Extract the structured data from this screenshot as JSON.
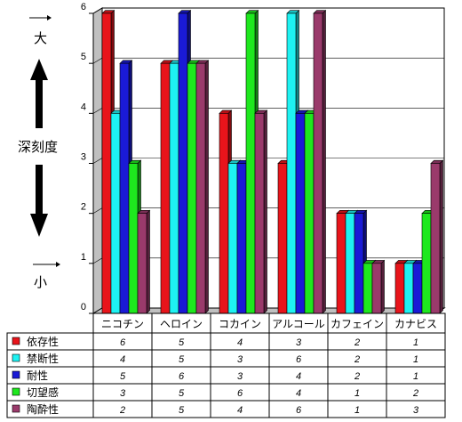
{
  "annotations": {
    "top_label": "大",
    "middle_label": "深刻度",
    "bottom_label": "小"
  },
  "chart_data": {
    "type": "bar",
    "categories": [
      "ニコチン",
      "ヘロイン",
      "コカイン",
      "アルコール",
      "カフェイン",
      "カナビス"
    ],
    "ylim": [
      0,
      6
    ],
    "yticks": [
      0,
      1,
      2,
      3,
      4,
      5,
      6
    ],
    "grid": true,
    "legend": "table-left",
    "series": [
      {
        "name": "依存性",
        "color": "#e8141b",
        "values": [
          6,
          5,
          4,
          3,
          2,
          1
        ]
      },
      {
        "name": "禁断性",
        "color": "#1ef2f2",
        "values": [
          4,
          5,
          3,
          6,
          2,
          1
        ]
      },
      {
        "name": "耐性",
        "color": "#1a1ad6",
        "values": [
          5,
          6,
          3,
          4,
          2,
          1
        ]
      },
      {
        "name": "切望感",
        "color": "#1ee81e",
        "values": [
          3,
          5,
          6,
          4,
          1,
          2
        ]
      },
      {
        "name": "陶酔性",
        "color": "#9a3a6b",
        "values": [
          2,
          5,
          4,
          6,
          1,
          3
        ]
      }
    ]
  }
}
